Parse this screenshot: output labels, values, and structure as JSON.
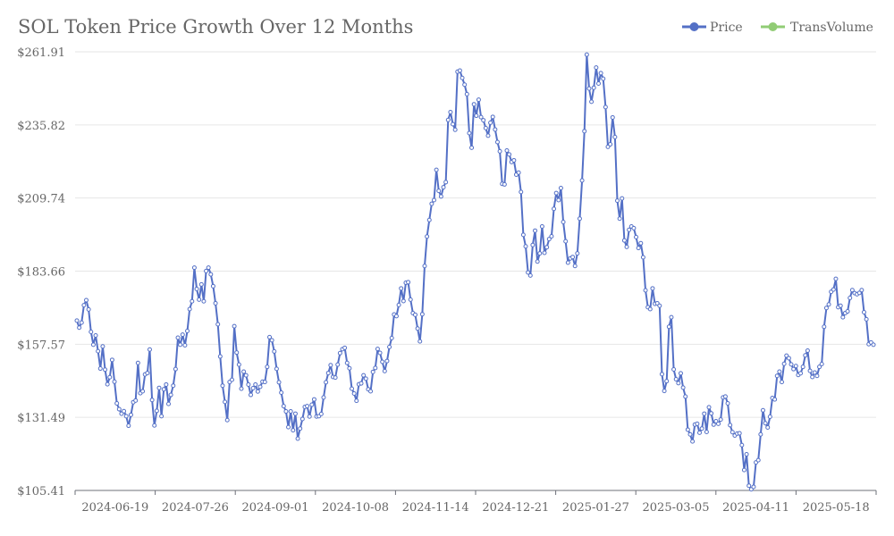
{
  "chart_data": {
    "type": "line",
    "title": "SOL Token Price Growth Over 12 Months",
    "xlabel": "",
    "ylabel": "",
    "ylim": [
      105.41,
      261.91
    ],
    "yticks": [
      "$105.41",
      "$131.49",
      "$157.57",
      "$183.66",
      "$209.74",
      "$235.82",
      "$261.91"
    ],
    "xticks": [
      "2024-06-19",
      "2024-07-26",
      "2024-09-01",
      "2024-10-08",
      "2024-11-14",
      "2024-12-21",
      "2025-01-27",
      "2025-03-05",
      "2025-04-11",
      "2025-05-18"
    ],
    "grid": "horizontal",
    "legend_position": "top-right",
    "legend": [
      {
        "name": "Price",
        "color": "#5470c6"
      },
      {
        "name": "TransVolume",
        "color": "#91cc75"
      }
    ],
    "series": [
      {
        "name": "Price",
        "color": "#5470c6",
        "values": [
          166.0,
          163.5,
          165.3,
          171.5,
          173.3,
          170.0,
          162.0,
          157.4,
          160.7,
          155.1,
          148.9,
          156.8,
          148.5,
          143.3,
          145.8,
          152.0,
          144.2,
          136.5,
          134.4,
          132.8,
          133.7,
          131.9,
          128.5,
          132.4,
          136.9,
          137.5,
          150.9,
          140.1,
          140.8,
          146.8,
          147.3,
          155.7,
          137.7,
          128.6,
          133.8,
          142.0,
          131.9,
          141.5,
          143.2,
          136.3,
          139.5,
          142.8,
          148.7,
          159.9,
          157.4,
          161.0,
          157.2,
          162.3,
          170.1,
          172.9,
          184.9,
          177.3,
          173.5,
          178.9,
          172.9,
          183.7,
          184.9,
          182.5,
          178.3,
          172.2,
          164.7,
          153.2,
          142.8,
          137.0,
          130.5,
          144.1,
          144.9,
          164.0,
          154.6,
          150.3,
          141.7,
          147.8,
          146.5,
          143.2,
          139.5,
          141.9,
          143.2,
          140.7,
          142.4,
          144.2,
          144.1,
          149.5,
          160.1,
          159.0,
          155.0,
          148.8,
          144.0,
          140.3,
          135.5,
          133.6,
          128.0,
          133.6,
          126.9,
          132.8,
          123.9,
          127.5,
          130.9,
          135.2,
          135.5,
          131.8,
          136.0,
          137.9,
          131.8,
          131.9,
          132.7,
          138.6,
          144.0,
          147.3,
          150.1,
          145.9,
          145.7,
          150.3,
          154.4,
          155.8,
          156.3,
          150.9,
          149.0,
          141.7,
          140.0,
          137.4,
          143.3,
          143.6,
          146.5,
          145.3,
          141.5,
          140.8,
          147.7,
          149.1,
          155.9,
          154.5,
          151.3,
          148.0,
          151.6,
          156.6,
          159.8,
          168.2,
          167.6,
          171.6,
          177.5,
          173.0,
          179.5,
          179.7,
          173.5,
          168.7,
          168.1,
          163.2,
          158.6,
          168.3,
          185.5,
          196.0,
          201.9,
          207.7,
          209.0,
          219.8,
          212.3,
          210.3,
          213.6,
          215.4,
          237.6,
          240.4,
          236.1,
          234.1,
          254.8,
          255.2,
          252.6,
          250.2,
          246.8,
          232.9,
          227.7,
          243.2,
          239.1,
          244.8,
          238.6,
          237.5,
          234.7,
          232.0,
          236.6,
          238.7,
          234.2,
          229.7,
          226.4,
          214.8,
          214.6,
          226.7,
          225.3,
          222.6,
          223.2,
          218.1,
          218.8,
          211.9,
          196.6,
          192.5,
          183.2,
          182.1,
          193.0,
          198.1,
          187.1,
          190.0,
          199.6,
          190.2,
          192.2,
          195.1,
          196.1,
          205.9,
          211.5,
          209.0,
          213.3,
          201.2,
          194.3,
          186.7,
          188.2,
          188.7,
          185.5,
          190.0,
          202.4,
          216.0,
          233.6,
          260.9,
          248.8,
          244.1,
          249.1,
          256.3,
          250.6,
          254.3,
          252.3,
          242.2,
          228.0,
          228.9,
          238.5,
          231.5,
          208.8,
          202.4,
          209.6,
          194.6,
          192.3,
          198.4,
          199.6,
          199.0,
          195.8,
          191.9,
          193.6,
          188.6,
          176.8,
          170.8,
          170.1,
          177.5,
          172.0,
          172.2,
          171.3,
          146.9,
          140.9,
          144.4,
          163.8,
          167.2,
          148.6,
          145.1,
          143.7,
          147.2,
          142.1,
          138.9,
          127.1,
          125.4,
          122.9,
          128.9,
          129.2,
          126.0,
          127.5,
          132.8,
          126.3,
          135.1,
          132.9,
          128.9,
          130.1,
          129.2,
          130.7,
          138.6,
          138.9,
          136.5,
          128.7,
          126.2,
          125.0,
          125.7,
          125.8,
          121.6,
          112.7,
          118.3,
          107.1,
          105.8,
          106.7,
          115.4,
          116.2,
          125.4,
          134.0,
          129.4,
          127.9,
          131.7,
          138.4,
          137.9,
          146.3,
          147.8,
          144.1,
          150.6,
          153.5,
          152.6,
          150.4,
          148.7,
          149.8,
          146.6,
          147.2,
          149.5,
          153.6,
          155.3,
          148.1,
          145.9,
          147.5,
          146.3,
          149.5,
          150.5,
          163.8,
          170.5,
          171.8,
          176.3,
          177.1,
          180.9,
          170.8,
          171.3,
          167.2,
          168.7,
          169.3,
          174.1,
          176.9,
          175.8,
          175.4,
          175.9,
          176.9,
          169.0,
          166.5,
          157.6,
          158.2,
          157.4
        ]
      },
      {
        "name": "TransVolume",
        "color": "#91cc75",
        "values": []
      }
    ]
  }
}
